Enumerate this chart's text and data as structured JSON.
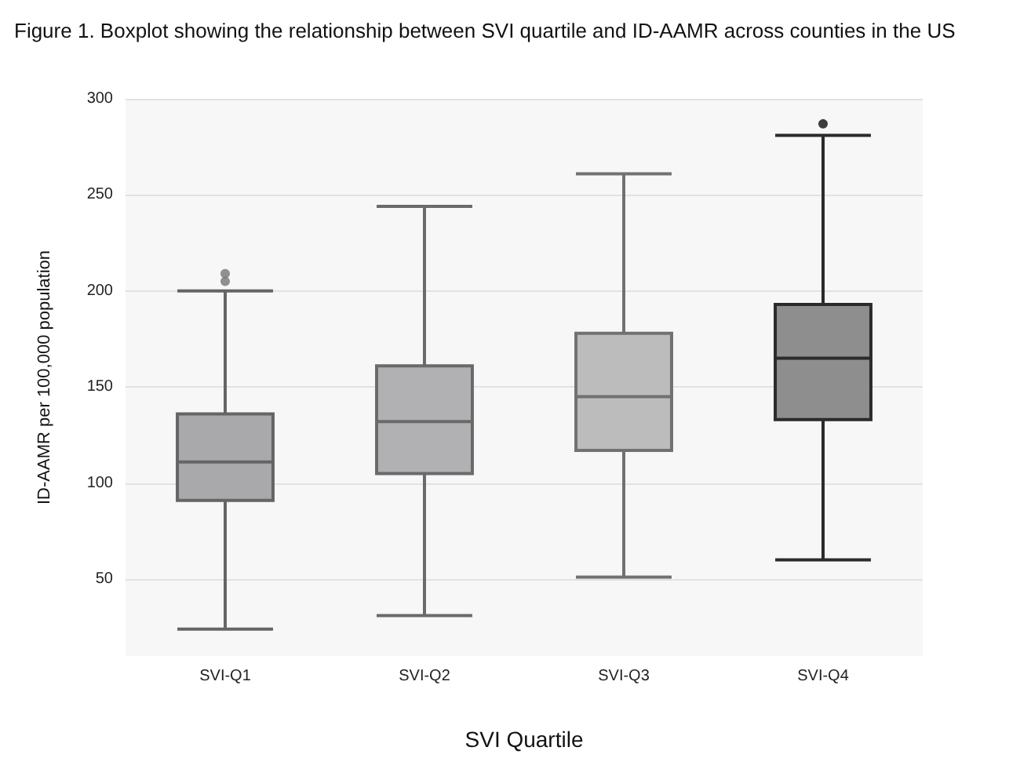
{
  "chart_data": {
    "type": "box",
    "title": "Figure 1. Boxplot showing the relationship between SVI quartile and ID-AAMR across counties in the US",
    "xlabel": "SVI Quartile",
    "ylabel": "ID-AAMR per 100,000 population",
    "categories": [
      "SVI-Q1",
      "SVI-Q2",
      "SVI-Q3",
      "SVI-Q4"
    ],
    "colors": [
      "#a9a8aa",
      "#b1b0b2",
      "#bdbcbc",
      "#8e8e8e"
    ],
    "boxes": [
      {
        "low": 24,
        "q1": 91,
        "median": 111,
        "q3": 136,
        "high": 200,
        "outliers": [
          205,
          209
        ]
      },
      {
        "low": 31,
        "q1": 105,
        "median": 132,
        "q3": 161,
        "high": 244
      },
      {
        "low": 51,
        "q1": 117,
        "median": 145,
        "q3": 178,
        "high": 261
      },
      {
        "low": 60,
        "q1": 133,
        "median": 165,
        "q3": 193,
        "high": 281,
        "outliers": [
          287
        ]
      }
    ],
    "ylim": [
      10,
      300
    ],
    "yticks": [
      50,
      100,
      150,
      200,
      250,
      300
    ],
    "grid": "y"
  }
}
